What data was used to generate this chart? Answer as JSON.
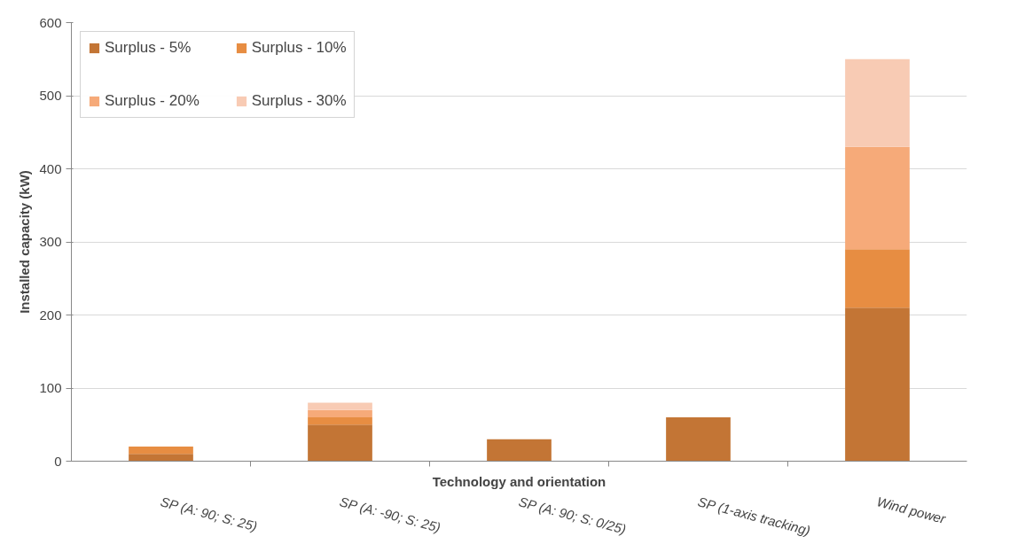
{
  "chart_data": {
    "type": "bar",
    "stacked": true,
    "xlabel": "Technology and orientation",
    "ylabel": "Installed capacity (kW)",
    "categories": [
      "SP (A: 90; S: 25)",
      "SP (A: -90; S: 25)",
      "SP (A: 90; S: 0/25)",
      "SP (1-axis tracking)",
      "Wind power"
    ],
    "series": [
      {
        "name": "Surplus - 5%",
        "color": "#c37535",
        "values": [
          10,
          50,
          30,
          60,
          210
        ]
      },
      {
        "name": "Surplus - 10%",
        "color": "#e78d42",
        "values": [
          10,
          10,
          0,
          0,
          80
        ]
      },
      {
        "name": "Surplus - 20%",
        "color": "#f6aa79",
        "values": [
          0,
          10,
          0,
          0,
          140
        ]
      },
      {
        "name": "Surplus - 30%",
        "color": "#f8cbb4",
        "values": [
          0,
          10,
          0,
          0,
          120
        ]
      }
    ],
    "ylim": [
      0,
      600
    ],
    "yticks": [
      0,
      100,
      200,
      300,
      400,
      500,
      600
    ],
    "grid": "y",
    "legend": "top left"
  }
}
